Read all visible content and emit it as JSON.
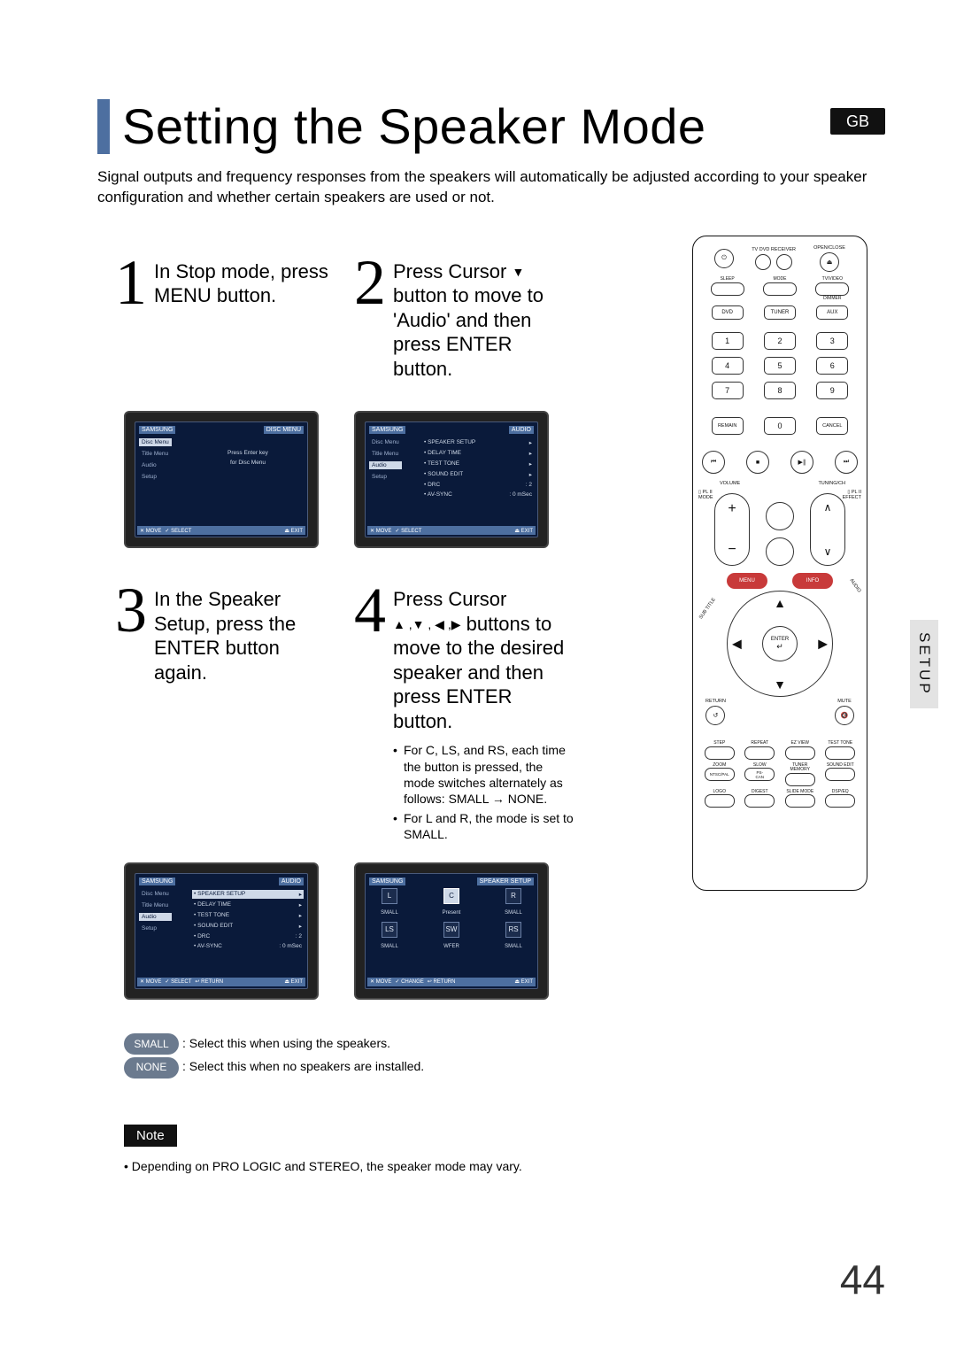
{
  "page": {
    "title": "Setting the Speaker Mode",
    "gb_badge": "GB",
    "intro": "Signal outputs and frequency responses from the speakers will automatically be adjusted according to your speaker configuration and whether certain speakers are used or not.",
    "page_number": "44",
    "side_tab": "SETUP"
  },
  "steps": {
    "s1": {
      "num": "1",
      "text": "In Stop mode, press MENU button."
    },
    "s2": {
      "num": "2",
      "text_pre": "Press Cursor ",
      "text_mid": " button to move to 'Audio' and then press ENTER button."
    },
    "s3": {
      "num": "3",
      "text": "In the Speaker Setup, press the ENTER button again."
    },
    "s4": {
      "num": "4",
      "text_pre": "Press Cursor ",
      "text_mid": " buttons to move to the desired speaker and then press ENTER button.",
      "bullets": [
        "For C, LS, and RS, each time the button is pressed, the mode switches alternately as follows: SMALL → NONE.",
        "For L and R, the mode is set to SMALL."
      ]
    }
  },
  "tv": {
    "common_footer": [
      "✕ MOVE",
      "✓ SELECT",
      "↩ RETURN",
      "⏏ EXIT"
    ],
    "footer_disc": [
      "✕ MOVE",
      "✓ SELECT",
      "⏏ EXIT"
    ],
    "s1": {
      "top_left": "SAMSUNG",
      "top_right": "DISC MENU",
      "left": [
        "Disc Menu",
        "Title Menu",
        "Audio",
        "Setup"
      ],
      "center": [
        "Press Enter key",
        "for Disc Menu"
      ]
    },
    "s2": {
      "top_left": "SAMSUNG",
      "top_right": "AUDIO",
      "left": [
        "Disc Menu",
        "Title Menu",
        "Audio",
        "Setup"
      ],
      "right": [
        {
          "label": "SPEAKER SETUP",
          "val": "▸"
        },
        {
          "label": "DELAY TIME",
          "val": "▸"
        },
        {
          "label": "TEST TONE",
          "val": "▸"
        },
        {
          "label": "SOUND EDIT",
          "val": "▸"
        },
        {
          "label": "DRC",
          "val": ": 2"
        },
        {
          "label": "AV-SYNC",
          "val": ": 0 mSec"
        }
      ]
    },
    "s3": {
      "top_left": "SAMSUNG",
      "top_right": "AUDIO",
      "left": [
        "Disc Menu",
        "Title Menu",
        "Audio",
        "Setup"
      ],
      "right": [
        {
          "label": "SPEAKER SETUP",
          "val": "▸",
          "hl": true
        },
        {
          "label": "DELAY TIME",
          "val": "▸"
        },
        {
          "label": "TEST TONE",
          "val": "▸"
        },
        {
          "label": "SOUND EDIT",
          "val": "▸"
        },
        {
          "label": "DRC",
          "val": ": 2"
        },
        {
          "label": "AV-SYNC",
          "val": ": 0 mSec"
        }
      ]
    },
    "s4": {
      "top_left": "SAMSUNG",
      "top_right": "SPEAKER SETUP",
      "speakers": {
        "L": "L",
        "C": "C",
        "R": "R",
        "LS": "LS",
        "SW": "SW",
        "RS": "RS",
        "l_small": "SMALL",
        "c_present": "Present",
        "r_small": "SMALL",
        "ls_small": "SMALL",
        "sw_label": "WFER",
        "rs_small": "SMALL"
      },
      "footer": [
        "✕ MOVE",
        "✓ CHANGE",
        "↩ RETURN",
        "⏏ EXIT"
      ]
    }
  },
  "legend": {
    "small_label": "SMALL",
    "small_text": ": Select this when using the speakers.",
    "none_label": "NONE",
    "none_text": ": Select this when no speakers are installed."
  },
  "note": {
    "label": "Note",
    "text": "• Depending on PRO LOGIC and STEREO, the speaker mode may vary."
  },
  "remote": {
    "top_label_right": "OPEN/CLOSE",
    "top_label_center": "TV   DVD RECEIVER",
    "row2_labels": [
      "SLEEP",
      "MODE",
      "TV/VIDEO"
    ],
    "row2b_label": "DIMMER",
    "source": [
      "DVD",
      "TUNER",
      "AUX"
    ],
    "numpad": [
      "1",
      "2",
      "3",
      "4",
      "5",
      "6",
      "7",
      "8",
      "9"
    ],
    "numpad_bottom": [
      "REMAIN",
      "0",
      "CANCEL"
    ],
    "transport": [
      "⏮",
      "■",
      "▶∥",
      "⏭"
    ],
    "vol_label": "VOLUME",
    "tune_label": "TUNING/CH",
    "plii_mode": "▯ PL II\nMODE",
    "plii_effect": "▯ PL II\nEFFECT",
    "menu_left": "MENU",
    "menu_right": "INFO",
    "side_left": "SUB TITLE",
    "side_right": "AUDIO",
    "enter": "ENTER",
    "return_label": "RETURN",
    "mute_label": "MUTE",
    "bottom_grid_labels": [
      "STEP",
      "REPEAT",
      "EZ VIEW",
      "TEST TONE",
      "ZOOM",
      "SLOW",
      "TUNER MEMORY",
      "SOUND EDIT",
      "LOGO",
      "DIGEST",
      "SLIDE MODE",
      "DSP/EQ"
    ],
    "bottom_grid_inner": [
      "",
      "",
      "",
      "",
      "NTSC/PAL",
      "PS-CAN",
      "",
      "",
      "",
      "",
      "",
      ""
    ]
  },
  "colors": {
    "accent_blue": "#4d6fa0",
    "tv_bg": "#0a1a3a",
    "pill_gray": "#6b7a8e",
    "menu_red": "#c83a3a"
  }
}
